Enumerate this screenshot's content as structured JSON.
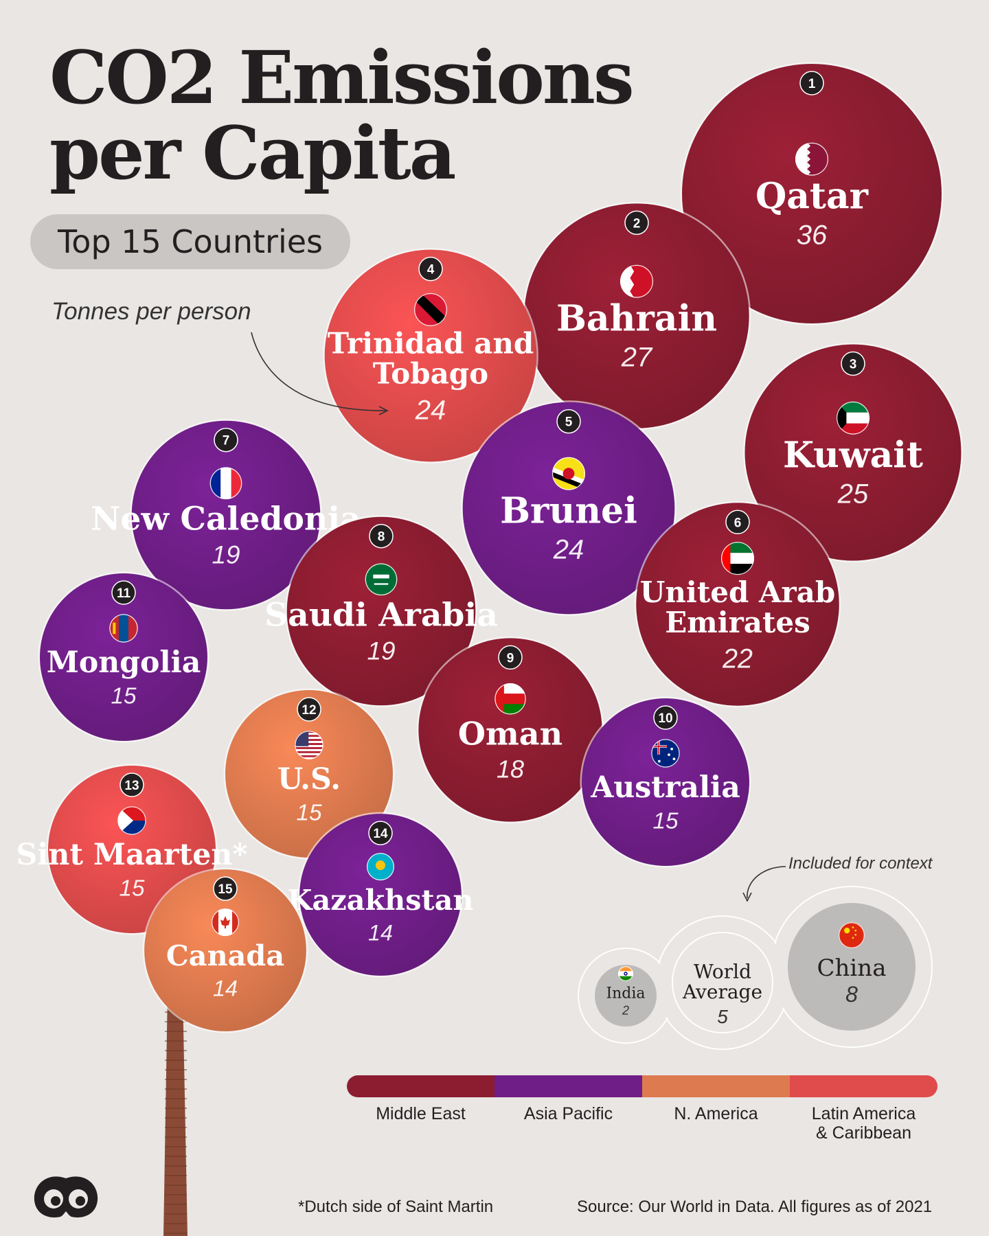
{
  "title_line1": "CO2 Emissions",
  "title_line2": "per Capita",
  "subtitle": "Top 15 Countries",
  "unit_note": "Tonnes per person",
  "context_note": "Included for context",
  "footnote": "*Dutch side of  Saint Martin",
  "source": "Source: Our World in Data. All figures as of 2021",
  "colors": {
    "Middle East": "#8c1d31",
    "Asia Pacific": "#6f1e88",
    "N. America": "#de7a4f",
    "Latin America & Caribbean": "#e04b4c",
    "context": "#bdbbba"
  },
  "chart_data": {
    "type": "bubble",
    "title": "CO2 Emissions per Capita",
    "unit": "Tonnes per person",
    "legend": [
      "Middle East",
      "Asia Pacific",
      "N. America",
      "Latin America & Caribbean"
    ],
    "legend_lines": [
      [
        "Middle East"
      ],
      [
        "Asia Pacific"
      ],
      [
        "N. America"
      ],
      [
        "Latin America",
        "& Caribbean"
      ]
    ],
    "countries": [
      {
        "rank": "1",
        "name": "Qatar",
        "lines": [
          "Qatar"
        ],
        "value": 36,
        "region": "Middle East",
        "flag": "qatar-flag-icon"
      },
      {
        "rank": "2",
        "name": "Bahrain",
        "lines": [
          "Bahrain"
        ],
        "value": 27,
        "region": "Middle East",
        "flag": "bahrain-flag-icon"
      },
      {
        "rank": "3",
        "name": "Kuwait",
        "lines": [
          "Kuwait"
        ],
        "value": 25,
        "region": "Middle East",
        "flag": "kuwait-flag-icon"
      },
      {
        "rank": "4",
        "name": "Trinidad and Tobago",
        "lines": [
          "Trinidad and",
          "Tobago"
        ],
        "value": 24,
        "region": "Latin America & Caribbean",
        "flag": "trinidad-flag-icon"
      },
      {
        "rank": "5",
        "name": "Brunei",
        "lines": [
          "Brunei"
        ],
        "value": 24,
        "region": "Asia Pacific",
        "flag": "brunei-flag-icon"
      },
      {
        "rank": "6",
        "name": "United Arab Emirates",
        "lines": [
          "United Arab",
          "Emirates"
        ],
        "value": 22,
        "region": "Middle East",
        "flag": "uae-flag-icon"
      },
      {
        "rank": "7",
        "name": "New Caledonia",
        "lines": [
          "New Caledonia"
        ],
        "value": 19,
        "region": "Asia Pacific",
        "flag": "france-flag-icon"
      },
      {
        "rank": "8",
        "name": "Saudi Arabia",
        "lines": [
          "Saudi Arabia"
        ],
        "value": 19,
        "region": "Middle East",
        "flag": "saudi-flag-icon"
      },
      {
        "rank": "9",
        "name": "Oman",
        "lines": [
          "Oman"
        ],
        "value": 18,
        "region": "Middle East",
        "flag": "oman-flag-icon"
      },
      {
        "rank": "10",
        "name": "Australia",
        "lines": [
          "Australia"
        ],
        "value": 15,
        "region": "Asia Pacific",
        "flag": "australia-flag-icon"
      },
      {
        "rank": "11",
        "name": "Mongolia",
        "lines": [
          "Mongolia"
        ],
        "value": 15,
        "region": "Asia Pacific",
        "flag": "mongolia-flag-icon"
      },
      {
        "rank": "12",
        "name": "U.S.",
        "lines": [
          "U.S."
        ],
        "value": 15,
        "region": "N. America",
        "flag": "usa-flag-icon"
      },
      {
        "rank": "13",
        "name": "Sint Maarten*",
        "lines": [
          "Sint Maarten*"
        ],
        "value": 15,
        "region": "Latin America & Caribbean",
        "flag": "sint-maarten-flag-icon"
      },
      {
        "rank": "14",
        "name": "Kazakhstan",
        "lines": [
          "Kazakhstan"
        ],
        "value": 14,
        "region": "Asia Pacific",
        "flag": "kazakhstan-flag-icon"
      },
      {
        "rank": "15",
        "name": "Canada",
        "lines": [
          "Canada"
        ],
        "value": 14,
        "region": "N. America",
        "flag": "canada-flag-icon"
      }
    ],
    "context": [
      {
        "name": "India",
        "lines": [
          "India"
        ],
        "value": 2,
        "flag": "india-flag-icon"
      },
      {
        "name": "World Average",
        "lines": [
          "World",
          "Average"
        ],
        "value": 5,
        "flag": ""
      },
      {
        "name": "China",
        "lines": [
          "China"
        ],
        "value": 8,
        "flag": "china-flag-icon"
      }
    ]
  }
}
